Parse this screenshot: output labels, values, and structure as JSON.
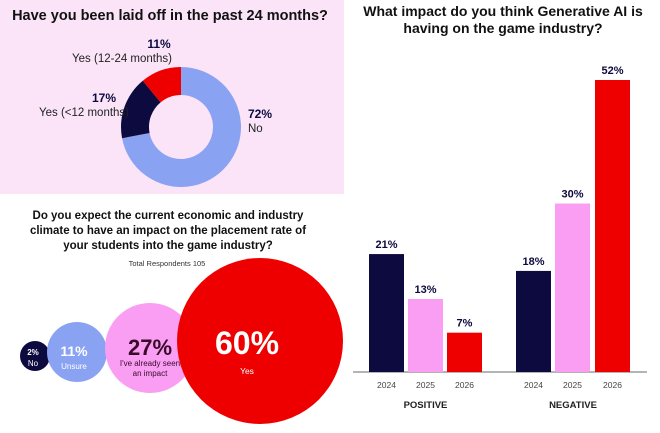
{
  "colors": {
    "navy": "#0c0a3e",
    "blue": "#8aa2f2",
    "pink": "#f99ef2",
    "red": "#ee0000",
    "panel": "#fbe4f8"
  },
  "chart_data": [
    {
      "type": "pie",
      "title": "Have you been laid off in the past 24 months?",
      "slices": [
        {
          "label": "No",
          "value": 72,
          "display": "72%",
          "color": "#8aa2f2"
        },
        {
          "label": "Yes (<12 months)",
          "value": 17,
          "display": "17%",
          "color": "#0c0a3e"
        },
        {
          "label": "Yes (12-24 months)",
          "value": 11,
          "display": "11%",
          "color": "#ee0000"
        }
      ]
    },
    {
      "type": "bubble",
      "title": "Do you expect the current economic and industry climate to have an impact on the placement rate of your students into the game industry?",
      "title_lines": [
        "Do you expect the current economic and industry",
        "climate to have an impact on the placement rate of",
        "your students into the game industry?"
      ],
      "subtitle": "Total Respondents 105",
      "bubbles": [
        {
          "label": "No",
          "value": 2,
          "display": "2%",
          "color": "#0c0a3e",
          "text_color": "#ffffff"
        },
        {
          "label": "Unsure",
          "value": 11,
          "display": "11%",
          "color": "#8aa2f2",
          "text_color": "#ffffff"
        },
        {
          "label": "I've already seen an impact",
          "label_lines": [
            "I've already seen",
            "an impact"
          ],
          "value": 27,
          "display": "27%",
          "color": "#f99ef2",
          "text_color": "#3a0a2a"
        },
        {
          "label": "Yes",
          "value": 60,
          "display": "60%",
          "color": "#ee0000",
          "text_color": "#ffffff"
        }
      ]
    },
    {
      "type": "bar",
      "title": "What impact do you think Generative AI is having on the game industry?",
      "title_lines": [
        "What impact do you think Generative AI is",
        "having on the game industry?"
      ],
      "groups": [
        "POSITIVE",
        "NEGATIVE"
      ],
      "categories": [
        "2024",
        "2025",
        "2026"
      ],
      "series_colors": [
        "#0c0a3e",
        "#f99ef2",
        "#ee0000"
      ],
      "values": {
        "POSITIVE": [
          21,
          13,
          7
        ],
        "NEGATIVE": [
          18,
          30,
          52
        ]
      },
      "ylim": [
        0,
        52
      ],
      "grid": false
    }
  ]
}
